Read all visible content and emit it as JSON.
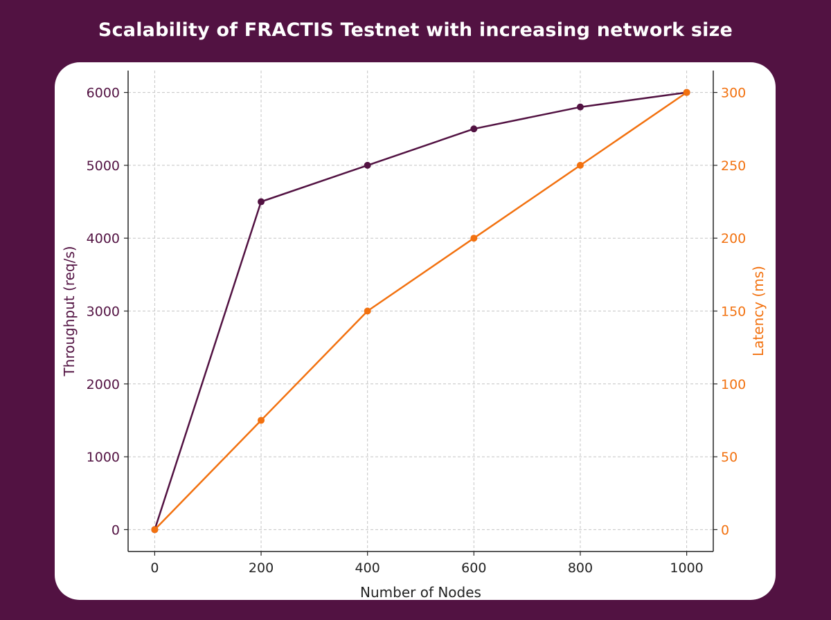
{
  "chart_data": {
    "type": "line",
    "title": "Scalability of FRACTIS Testnet with increasing network size",
    "xlabel": "Number of Nodes",
    "x": [
      0,
      200,
      400,
      600,
      800,
      1000
    ],
    "xticks": [
      0,
      200,
      400,
      600,
      800,
      1000
    ],
    "xlim": [
      -50,
      1050
    ],
    "grid": true,
    "y_left": {
      "label": "Throughput (req/s)",
      "color": "#521242",
      "ticks": [
        0,
        1000,
        2000,
        3000,
        4000,
        5000,
        6000
      ],
      "ylim": [
        -300,
        6300
      ]
    },
    "y_right": {
      "label": "Latency (ms)",
      "color": "#F2710F",
      "ticks": [
        0,
        50,
        100,
        150,
        200,
        250,
        300
      ],
      "ylim": [
        -15,
        315
      ]
    },
    "series": [
      {
        "axis": "left",
        "color": "#521242",
        "values": [
          0,
          4500,
          5000,
          5500,
          5800,
          6000
        ]
      },
      {
        "axis": "right",
        "color": "#F2710F",
        "values": [
          0,
          75,
          150,
          200,
          250,
          300
        ]
      }
    ]
  }
}
